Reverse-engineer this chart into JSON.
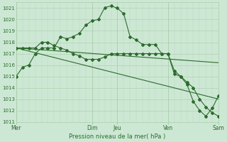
{
  "background_color": "#cce8d4",
  "grid_color_major": "#aaccaa",
  "grid_color_minor": "#bbd8bb",
  "line_color": "#2d6b2d",
  "xlabel_text": "Pression niveau de la mer( hPa )",
  "ylim": [
    1011,
    1021.5
  ],
  "xlim": [
    0,
    32
  ],
  "yticks": [
    1011,
    1012,
    1013,
    1014,
    1015,
    1016,
    1017,
    1018,
    1019,
    1020,
    1021
  ],
  "day_labels": [
    "Mer",
    "Dim",
    "Jeu",
    "Ven",
    "Sam"
  ],
  "day_positions": [
    0,
    12,
    16,
    24,
    32
  ],
  "series1_x": [
    0,
    1,
    2,
    3,
    4,
    5,
    6,
    7,
    8,
    9,
    10,
    11,
    12,
    13,
    14,
    15,
    16,
    17,
    18,
    19,
    20,
    21,
    22,
    23,
    24,
    25,
    26,
    27,
    28,
    29,
    30,
    31,
    32
  ],
  "series1_y": [
    1015.0,
    1015.8,
    1016.0,
    1017.0,
    1017.5,
    1017.5,
    1017.5,
    1018.5,
    1018.3,
    1018.5,
    1018.8,
    1019.5,
    1019.9,
    1020.0,
    1021.05,
    1021.2,
    1021.0,
    1020.5,
    1018.5,
    1018.2,
    1017.8,
    1017.8,
    1017.8,
    1017.0,
    1017.0,
    1015.2,
    1015.0,
    1014.3,
    1012.8,
    1012.0,
    1011.5,
    1012.2,
    1013.3
  ],
  "series2_x": [
    0,
    1,
    2,
    3,
    4,
    5,
    6,
    7,
    8,
    9,
    10,
    11,
    12,
    13,
    14,
    15,
    16,
    17,
    18,
    19,
    20,
    21,
    22,
    23,
    24,
    25,
    26,
    27,
    28,
    29,
    30,
    31,
    32
  ],
  "series2_y": [
    1017.5,
    1017.5,
    1017.5,
    1017.5,
    1018.0,
    1018.0,
    1017.7,
    1017.5,
    1017.3,
    1017.0,
    1016.8,
    1016.5,
    1016.5,
    1016.5,
    1016.7,
    1017.0,
    1017.0,
    1017.0,
    1017.0,
    1017.0,
    1017.0,
    1017.0,
    1017.0,
    1017.0,
    1017.0,
    1015.5,
    1015.0,
    1014.5,
    1014.0,
    1013.0,
    1012.3,
    1011.8,
    1011.5
  ],
  "series3_x": [
    0,
    32
  ],
  "series3_y": [
    1017.5,
    1016.2
  ],
  "series4_x": [
    0,
    32
  ],
  "series4_y": [
    1017.5,
    1013.0
  ]
}
